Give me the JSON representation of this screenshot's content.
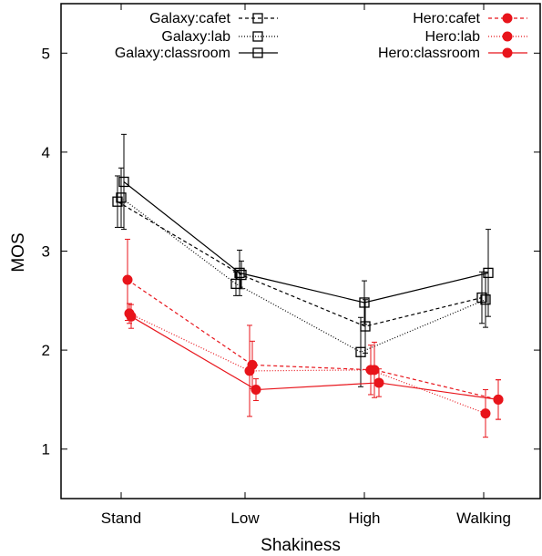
{
  "chart_data": {
    "type": "line",
    "title": "",
    "xlabel": "Shakiness",
    "ylabel": "MOS",
    "categories": [
      "Stand",
      "Low",
      "High",
      "Walking"
    ],
    "ylim": [
      0.5,
      5.5
    ],
    "yticks": [
      1,
      2,
      3,
      4,
      5
    ],
    "grid": false,
    "legend_position": "top",
    "series": [
      {
        "name": "Galaxy:cafet",
        "color": "#000000",
        "line_style": "dashed",
        "marker": "open-square",
        "values": [
          3.5,
          2.76,
          2.24,
          2.53
        ],
        "errors": [
          0.26,
          0.14,
          0.27,
          0.26
        ]
      },
      {
        "name": "Galaxy:lab",
        "color": "#000000",
        "line_style": "dotted",
        "marker": "open-square",
        "values": [
          3.54,
          2.67,
          1.98,
          2.51
        ],
        "errors": [
          0.3,
          0.12,
          0.35,
          0.28
        ]
      },
      {
        "name": "Galaxy:classroom",
        "color": "#000000",
        "line_style": "solid",
        "marker": "open-square",
        "values": [
          3.7,
          2.78,
          2.48,
          2.78
        ],
        "errors": [
          0.48,
          0.23,
          0.22,
          0.44
        ]
      },
      {
        "name": "Hero:cafet",
        "color": "#e8141b",
        "line_style": "dashed",
        "marker": "filled-circle",
        "values": [
          2.71,
          1.85,
          1.8,
          1.5
        ],
        "errors": [
          0.41,
          0.24,
          0.28,
          0.2
        ]
      },
      {
        "name": "Hero:lab",
        "color": "#e8141b",
        "line_style": "dotted",
        "marker": "filled-circle",
        "values": [
          2.37,
          1.79,
          1.8,
          1.36
        ],
        "errors": [
          0.1,
          0.46,
          0.25,
          0.24
        ]
      },
      {
        "name": "Hero:classroom",
        "color": "#e8141b",
        "line_style": "solid",
        "marker": "filled-circle",
        "values": [
          2.34,
          1.6,
          1.67,
          1.5
        ],
        "errors": [
          0.12,
          0.11,
          0.14,
          0.2
        ]
      }
    ]
  }
}
